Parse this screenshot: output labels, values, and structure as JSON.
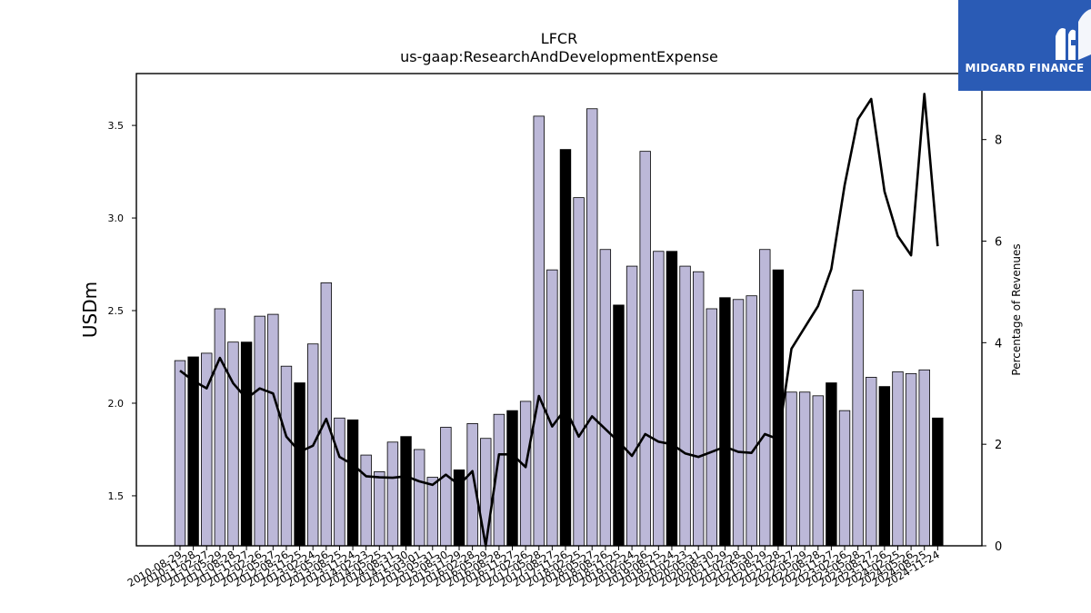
{
  "logo": {
    "text": "MIDGARD FINANCE",
    "icon": "midgard-logo-icon",
    "background": "#2a5bb5"
  },
  "chart_data": {
    "type": "bar",
    "title": "LFCR",
    "subtitle": "us-gaap:ResearchAndDevelopmentExpense",
    "ylabel": "USDm",
    "y2label": "Percentage of Revenues",
    "ylim": [
      1.23,
      3.78
    ],
    "y2lim": [
      0,
      9.3
    ],
    "yticks": [
      "1.5",
      "2.0",
      "2.5",
      "3.0",
      "3.5"
    ],
    "y2ticks": [
      "0",
      "2",
      "4",
      "6",
      "8"
    ],
    "colors": {
      "bar": "#bcb8d8",
      "bar_highlight": "#000000",
      "line": "#000000"
    },
    "xticklabels": [
      "2010-08-29",
      "2010-11-28",
      "2011-02-27",
      "2011-05-29",
      "2011-08-28",
      "2011-11-27",
      "2012-02-26",
      "2012-05-27",
      "2012-08-26",
      "2012-11-25",
      "2013-02-24",
      "2013-05-26",
      "2013-08-25",
      "2013-11-24",
      "2014-02-23",
      "2014-05-25",
      "2014-08-31",
      "2014-11-30",
      "2015-03-01",
      "2015-05-31",
      "2015-08-30",
      "2015-11-29",
      "2016-02-28",
      "2016-05-29",
      "2016-08-28",
      "2016-11-27",
      "2017-02-26",
      "2017-05-28",
      "2017-08-27",
      "2017-11-26",
      "2018-02-25",
      "2018-05-27",
      "2018-08-26",
      "2018-11-25",
      "2019-02-24",
      "2019-05-26",
      "2019-08-25",
      "2019-11-24",
      "2020-02-23",
      "2020-05-31",
      "2020-08-30",
      "2020-11-29",
      "2021-02-28",
      "2021-05-30",
      "2021-08-29",
      "2021-11-28",
      "2022-02-27",
      "2022-05-29",
      "2022-08-28",
      "2022-11-27",
      "2023-02-26",
      "2023-05-28",
      "2023-08-27",
      "2023-11-26",
      "2024-02-25",
      "2024-05-26",
      "2024-08-25",
      "2024-11-24"
    ],
    "highlight": [
      false,
      true,
      false,
      false,
      false,
      true,
      false,
      false,
      false,
      true,
      false,
      false,
      false,
      true,
      false,
      false,
      false,
      true,
      false,
      false,
      false,
      true,
      false,
      false,
      false,
      true,
      false,
      false,
      false,
      true,
      false,
      false,
      false,
      true,
      false,
      false,
      false,
      true,
      false,
      false,
      false,
      true,
      false,
      false,
      false,
      true,
      false,
      false,
      false,
      true,
      false,
      false,
      false,
      true,
      false,
      false,
      false,
      true
    ],
    "series": [
      {
        "type": "bar",
        "axis": "left",
        "values": [
          2.23,
          2.25,
          2.27,
          2.51,
          2.33,
          2.33,
          2.47,
          2.48,
          2.2,
          2.11,
          2.32,
          2.65,
          1.92,
          1.91,
          1.72,
          1.63,
          1.79,
          1.82,
          1.75,
          1.6,
          1.87,
          1.64,
          1.89,
          1.81,
          1.94,
          1.96,
          2.01,
          3.55,
          2.72,
          3.37,
          3.11,
          3.59,
          2.83,
          2.53,
          2.74,
          3.36,
          2.82,
          2.82,
          2.74,
          2.71,
          2.51,
          2.57,
          2.56,
          2.58,
          2.83,
          2.72,
          2.06,
          2.06,
          2.04,
          2.11,
          1.96,
          2.61,
          2.14,
          2.09,
          2.17,
          2.16,
          2.18,
          1.92
        ]
      },
      {
        "type": "line",
        "axis": "right",
        "values": [
          3.45,
          3.25,
          3.1,
          3.7,
          3.2,
          2.9,
          3.1,
          3.0,
          2.15,
          1.85,
          1.97,
          2.5,
          1.75,
          1.6,
          1.37,
          1.35,
          1.34,
          1.37,
          1.27,
          1.2,
          1.4,
          1.2,
          1.47,
          0.0,
          1.8,
          1.8,
          1.55,
          2.95,
          2.35,
          2.7,
          2.15,
          2.55,
          2.3,
          2.05,
          1.77,
          2.2,
          2.05,
          2.0,
          1.82,
          1.75,
          1.85,
          1.95,
          1.85,
          1.83,
          2.2,
          2.1,
          3.88,
          4.3,
          4.72,
          5.45,
          7.1,
          8.4,
          8.8,
          6.98,
          6.1,
          5.72,
          8.9,
          5.9
        ]
      }
    ]
  }
}
